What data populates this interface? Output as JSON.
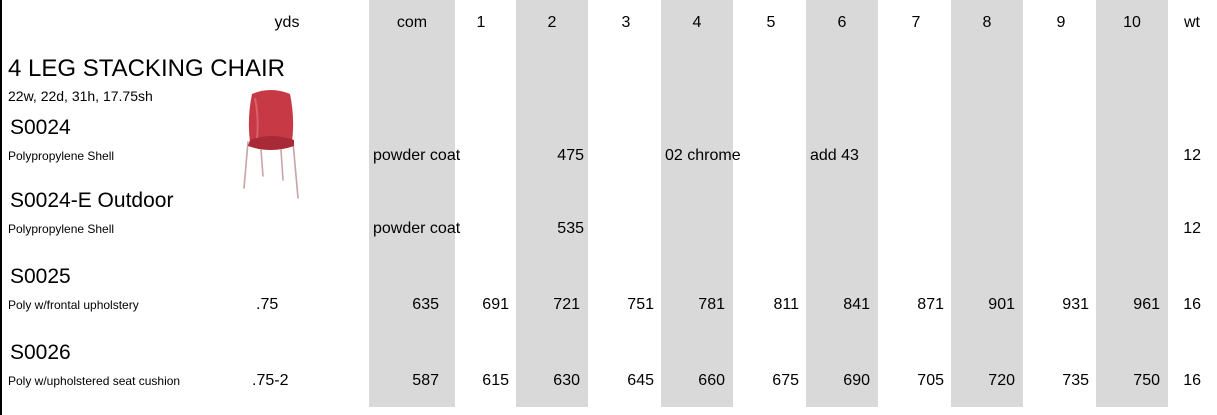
{
  "header": {
    "yds": "yds",
    "com": "com",
    "g1": "1",
    "g2": "2",
    "g3": "3",
    "g4": "4",
    "g5": "5",
    "g6": "6",
    "g7": "7",
    "g8": "8",
    "g9": "9",
    "g10": "10",
    "wt": "wt"
  },
  "product": {
    "title": "4 LEG STACKING CHAIR",
    "dimensions": "22w, 22d, 31h, 17.75sh",
    "image_icon": "stacking-chair-photo",
    "accent_color": "#c63945"
  },
  "rows": {
    "s0024": {
      "sku": "S0024",
      "desc": "Polypropylene Shell",
      "com": "powder coat",
      "g2": "475",
      "g4": "02 chrome",
      "g6": "add 43",
      "wt": "12"
    },
    "s0024e": {
      "sku": "S0024-E Outdoor",
      "desc": "Polypropylene Shell",
      "com": "powder coat",
      "g2": "535",
      "wt": "12"
    },
    "s0025": {
      "sku": "S0025",
      "desc": "Poly w/frontal upholstery",
      "yds": ".75",
      "com": "635",
      "g1": "691",
      "g2": "721",
      "g3": "751",
      "g4": "781",
      "g5": "811",
      "g6": "841",
      "g7": "871",
      "g8": "901",
      "g9": "931",
      "g10": "961",
      "wt": "16"
    },
    "s0026": {
      "sku": "S0026",
      "desc": "Poly w/upholstered seat cushion",
      "yds": ".75-2",
      "com": "587",
      "g1": "615",
      "g2": "630",
      "g3": "645",
      "g4": "660",
      "g5": "675",
      "g6": "690",
      "g7": "705",
      "g8": "720",
      "g9": "735",
      "g10": "750",
      "wt": "16"
    }
  }
}
